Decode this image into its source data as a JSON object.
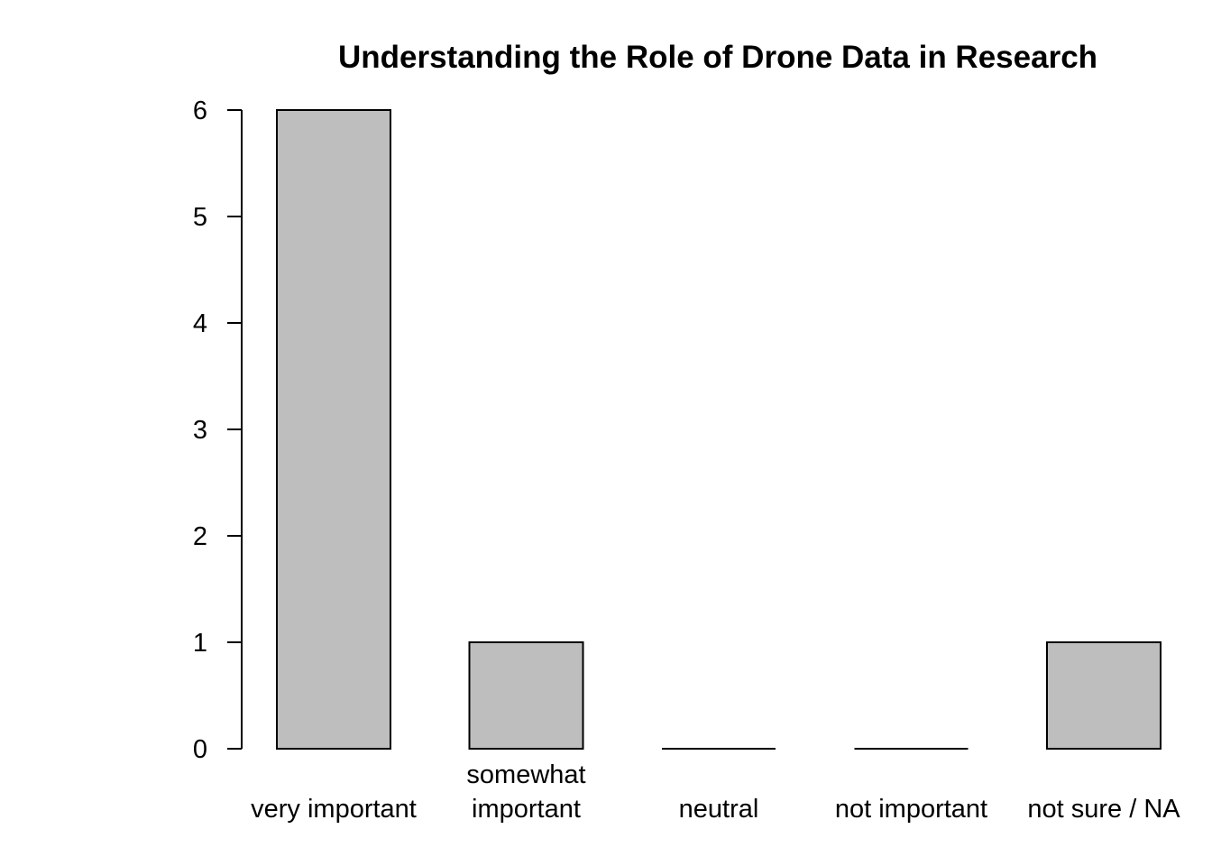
{
  "chart_data": {
    "type": "bar",
    "title": "Understanding the Role of Drone Data in Research",
    "xlabel": "",
    "ylabel": "",
    "categories": [
      [
        "very important"
      ],
      [
        "somewhat",
        "important"
      ],
      [
        "neutral"
      ],
      [
        "not important"
      ],
      [
        "not sure / NA"
      ]
    ],
    "values": [
      6,
      1,
      0,
      0,
      1
    ],
    "yticks": [
      0,
      1,
      2,
      3,
      4,
      5,
      6
    ],
    "ylim": [
      0,
      6
    ],
    "grid": false,
    "legend": "none",
    "colors": {
      "bar_fill": "#bebebe",
      "bar_stroke": "#000000",
      "axis": "#000000",
      "background": "#ffffff"
    }
  }
}
